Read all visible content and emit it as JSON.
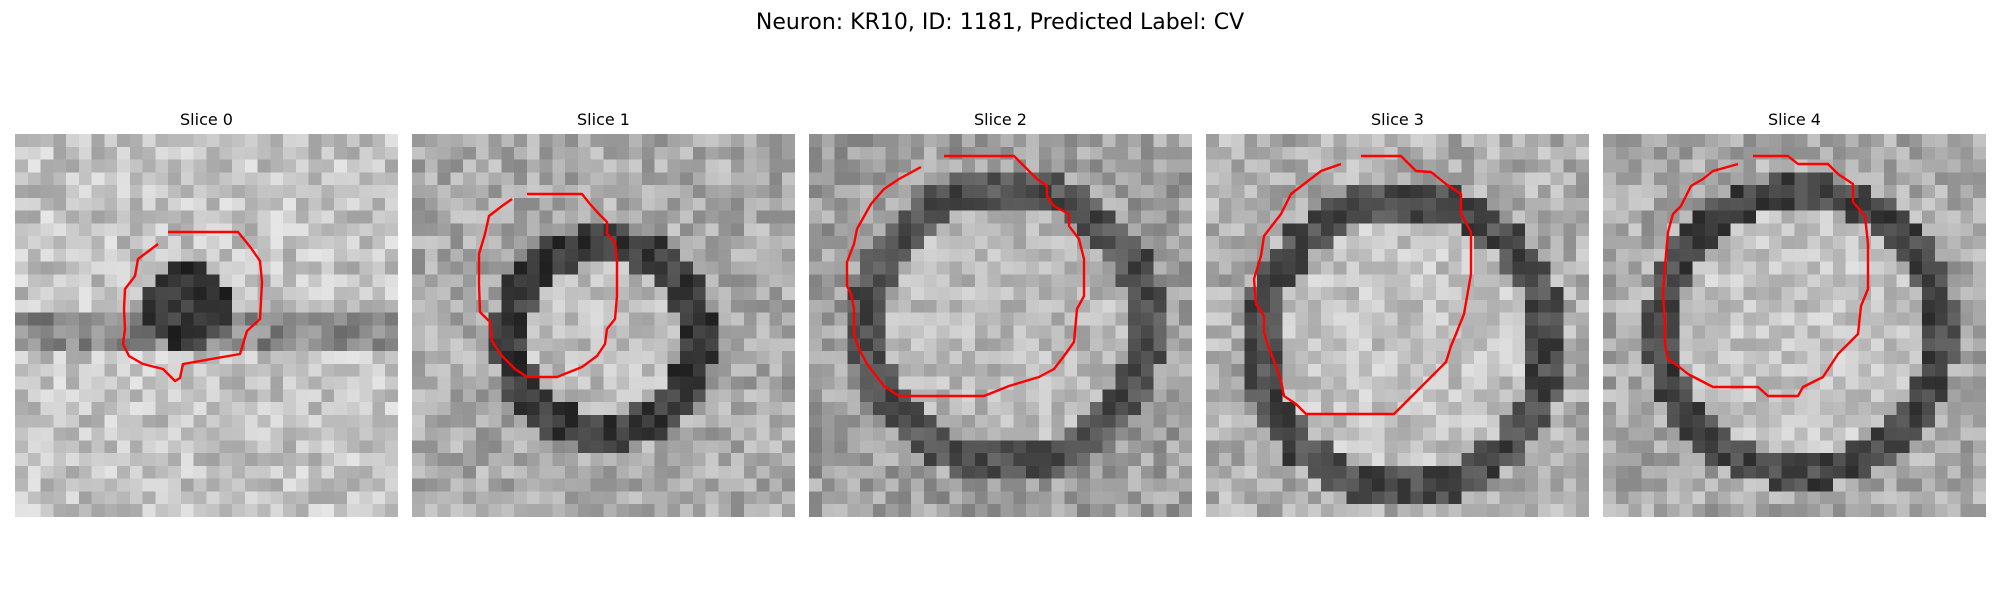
{
  "title": "Neuron: KR10, ID: 1181, Predicted Label: CV",
  "contour_color": "#ff0000",
  "panels": [
    {
      "title": "Slice 0"
    },
    {
      "title": "Slice 1"
    },
    {
      "title": "Slice 2"
    },
    {
      "title": "Slice 3"
    },
    {
      "title": "Slice 4"
    }
  ]
}
